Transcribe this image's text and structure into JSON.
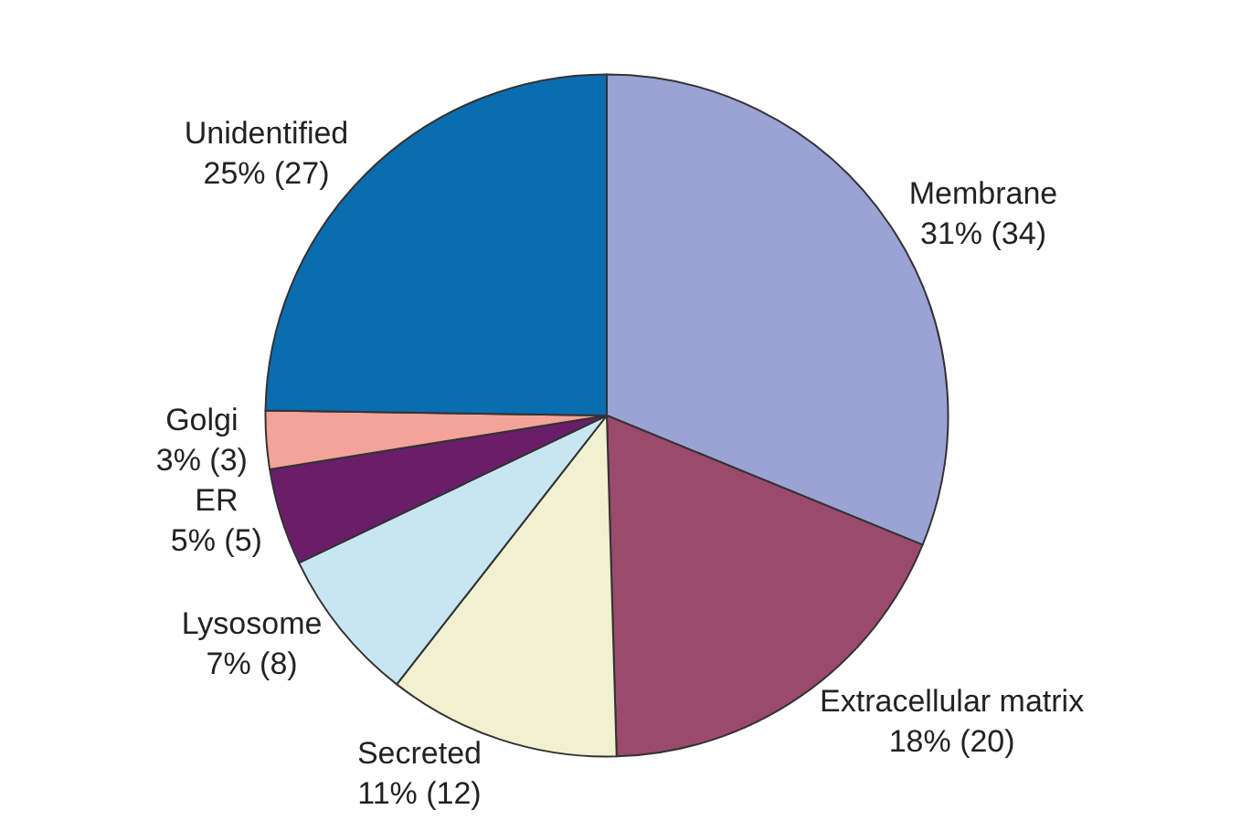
{
  "chart_data": {
    "type": "pie",
    "categories": [
      "Membrane",
      "Extracellular matrix",
      "Secreted",
      "Lysosome",
      "ER",
      "Golgi",
      "Unidentified"
    ],
    "values": [
      34,
      20,
      12,
      8,
      5,
      3,
      27
    ],
    "value_labels": [
      "31% (34)",
      "18% (20)",
      "11% (12)",
      "7% (8)",
      "5% (5)",
      "3% (3)",
      "25% (27)"
    ],
    "colors": [
      "#9aa3d4",
      "#9b4a6e",
      "#f1f1d0",
      "#c8e6f2",
      "#6a1e6a",
      "#f4a39a",
      "#0a6db0"
    ],
    "legend": false
  }
}
